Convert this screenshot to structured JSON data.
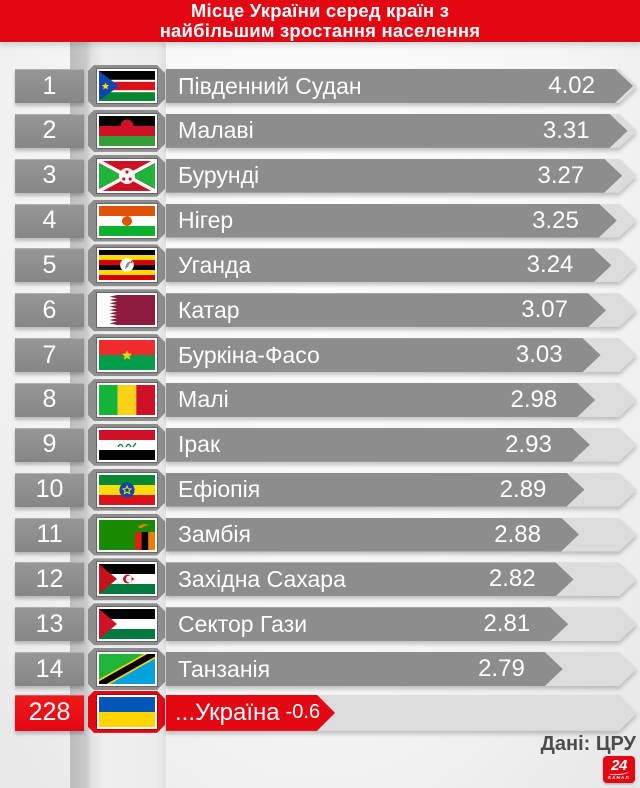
{
  "header": {
    "line1": "Місце України серед країн з",
    "line2": "найбільшим зростання населення"
  },
  "source_label": "Дані: ЦРУ",
  "logo": {
    "number": "24",
    "text": "КАНАЛ"
  },
  "colors": {
    "red": "#e30613",
    "bar_gray": "#8d8d8d",
    "track_gray": "#dcdcdc"
  },
  "rows": [
    {
      "rank": "1",
      "country": "Південний Судан",
      "value": "4.02",
      "flag": "south-sudan",
      "highlight": false
    },
    {
      "rank": "2",
      "country": "Малаві",
      "value": "3.31",
      "flag": "malawi",
      "highlight": false
    },
    {
      "rank": "3",
      "country": "Бурунді",
      "value": "3.27",
      "flag": "burundi",
      "highlight": false
    },
    {
      "rank": "4",
      "country": "Нігер",
      "value": "3.25",
      "flag": "niger",
      "highlight": false
    },
    {
      "rank": "5",
      "country": "Уганда",
      "value": "3.24",
      "flag": "uganda",
      "highlight": false
    },
    {
      "rank": "6",
      "country": "Катар",
      "value": "3.07",
      "flag": "qatar",
      "highlight": false
    },
    {
      "rank": "7",
      "country": "Буркіна-Фасо",
      "value": "3.03",
      "flag": "burkina-faso",
      "highlight": false
    },
    {
      "rank": "8",
      "country": "Малі",
      "value": "2.98",
      "flag": "mali",
      "highlight": false
    },
    {
      "rank": "9",
      "country": "Ірак",
      "value": "2.93",
      "flag": "iraq",
      "highlight": false
    },
    {
      "rank": "10",
      "country": "Ефіопія",
      "value": "2.89",
      "flag": "ethiopia",
      "highlight": false
    },
    {
      "rank": "11",
      "country": "Замбія",
      "value": "2.88",
      "flag": "zambia",
      "highlight": false
    },
    {
      "rank": "12",
      "country": "Західна Сахара",
      "value": "2.82",
      "flag": "western-sahara",
      "highlight": false
    },
    {
      "rank": "13",
      "country": "Сектор Гази",
      "value": "2.81",
      "flag": "gaza",
      "highlight": false
    },
    {
      "rank": "14",
      "country": "Танзанія",
      "value": "2.79",
      "flag": "tanzania",
      "highlight": false
    },
    {
      "rank": "228",
      "country": "...Україна",
      "value": "-0.6",
      "flag": "ukraine",
      "highlight": true
    }
  ],
  "chart_data": {
    "type": "bar",
    "orientation": "horizontal",
    "title": "Місце України серед країн з найбільшим зростання населення",
    "categories": [
      "Південний Судан",
      "Малаві",
      "Бурунді",
      "Нігер",
      "Уганда",
      "Катар",
      "Буркіна-Фасо",
      "Малі",
      "Ірак",
      "Ефіопія",
      "Замбія",
      "Західна Сахара",
      "Сектор Гази",
      "Танзанія",
      "Україна"
    ],
    "values": [
      4.02,
      3.31,
      3.27,
      3.25,
      3.24,
      3.07,
      3.03,
      2.98,
      2.93,
      2.89,
      2.88,
      2.82,
      2.81,
      2.79,
      -0.6
    ],
    "ranks": [
      1,
      2,
      3,
      4,
      5,
      6,
      7,
      8,
      9,
      10,
      11,
      12,
      13,
      14,
      228
    ],
    "highlight_category": "Україна",
    "source": "Дані: ЦРУ",
    "legend": false,
    "grid": false
  }
}
